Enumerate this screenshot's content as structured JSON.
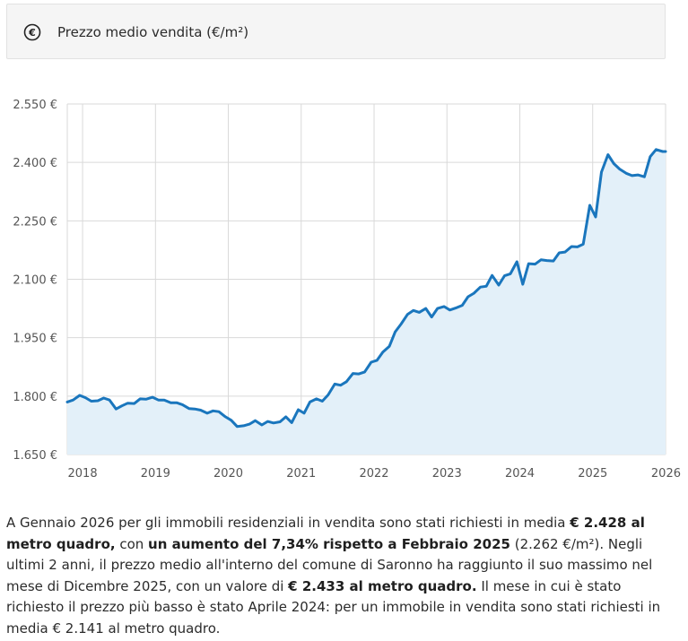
{
  "header": {
    "icon": "euro-circle-icon",
    "title": "Prezzo medio vendita (€/m²)"
  },
  "description": {
    "t1": "A Gennaio 2026 per gli immobili residenziali in vendita sono stati richiesti in media ",
    "b1": "€ 2.428 al metro quadro,",
    "t2": " con ",
    "b2": "un aumento del 7,34% rispetto a Febbraio 2025",
    "t3": " (2.262 €/m²). Negli ultimi 2 anni, il prezzo medio all'interno del comune di Saronno ha raggiunto il suo massimo nel mese di Dicembre 2025, con un valore di ",
    "b3": "€ 2.433 al metro quadro.",
    "t4": " Il mese in cui è stato richiesto il prezzo più basso è stato Aprile 2024: per un immobile in vendita sono stati richiesti in media € 2.141 al metro quadro."
  },
  "colors": {
    "line": "#1a76bd",
    "fill": "#e3f0f9",
    "grid": "#d9d9d9",
    "axis_text": "#555555"
  },
  "chart_data": {
    "type": "area",
    "y_ticks": [
      1650,
      1800,
      1950,
      2100,
      2250,
      2400,
      2550
    ],
    "y_tick_labels": [
      "1.650 €",
      "1.800 €",
      "1.950 €",
      "2.100 €",
      "2.250 €",
      "2.400 €",
      "2.550 €"
    ],
    "x_ticks": [
      2018,
      2019,
      2020,
      2021,
      2022,
      2023,
      2024,
      2025,
      2026
    ],
    "x_tick_labels": [
      "2018",
      "2019",
      "2020",
      "2021",
      "2022",
      "2023",
      "2024",
      "2025",
      "2026"
    ],
    "xlim": [
      2017.79,
      2026.0
    ],
    "ylim": [
      1650,
      2550
    ],
    "grid": true,
    "series": [
      {
        "x": [
          2017.79,
          2017.87,
          2017.96,
          2018.04,
          2018.12,
          2018.21,
          2018.29,
          2018.37,
          2018.46,
          2018.54,
          2018.62,
          2018.71,
          2018.79,
          2018.87,
          2018.96,
          2019.04,
          2019.12,
          2019.21,
          2019.29,
          2019.37,
          2019.46,
          2019.54,
          2019.62,
          2019.71,
          2019.79,
          2019.87,
          2019.96,
          2020.04,
          2020.12,
          2020.21,
          2020.29,
          2020.37,
          2020.46,
          2020.54,
          2020.62,
          2020.71,
          2020.79,
          2020.87,
          2020.96,
          2021.04,
          2021.12,
          2021.21,
          2021.29,
          2021.37,
          2021.46,
          2021.54,
          2021.62,
          2021.71,
          2021.79,
          2021.87,
          2021.96,
          2022.04,
          2022.12,
          2022.21,
          2022.29,
          2022.37,
          2022.46,
          2022.54,
          2022.62,
          2022.71,
          2022.79,
          2022.87,
          2022.96,
          2023.04,
          2023.12,
          2023.21,
          2023.29,
          2023.37,
          2023.46,
          2023.54,
          2023.62,
          2023.71,
          2023.79,
          2023.87,
          2023.96,
          2024.04,
          2024.12,
          2024.21,
          2024.29,
          2024.37,
          2024.46,
          2024.54,
          2024.62,
          2024.71,
          2024.79,
          2024.87,
          2024.96,
          2025.04,
          2025.12,
          2025.21,
          2025.29,
          2025.37,
          2025.46,
          2025.54,
          2025.62,
          2025.71,
          2025.79,
          2025.87,
          2025.96,
          2026.0
        ],
        "y": [
          1785,
          1790,
          1802,
          1796,
          1787,
          1788,
          1795,
          1790,
          1767,
          1775,
          1782,
          1781,
          1793,
          1792,
          1797,
          1790,
          1790,
          1783,
          1783,
          1778,
          1768,
          1767,
          1764,
          1756,
          1762,
          1760,
          1747,
          1738,
          1722,
          1724,
          1728,
          1737,
          1726,
          1735,
          1731,
          1734,
          1747,
          1732,
          1765,
          1756,
          1785,
          1793,
          1787,
          1803,
          1831,
          1828,
          1837,
          1858,
          1857,
          1862,
          1887,
          1892,
          1913,
          1928,
          1965,
          1985,
          2010,
          2020,
          2015,
          2025,
          2003,
          2025,
          2030,
          2021,
          2026,
          2033,
          2055,
          2064,
          2080,
          2082,
          2110,
          2085,
          2109,
          2114,
          2145,
          2087,
          2140,
          2139,
          2150,
          2148,
          2147,
          2168,
          2170,
          2184,
          2183,
          2190,
          2290,
          2260,
          2375,
          2420,
          2397,
          2383,
          2372,
          2366,
          2368,
          2363,
          2415,
          2433,
          2428,
          2428
        ]
      }
    ]
  }
}
